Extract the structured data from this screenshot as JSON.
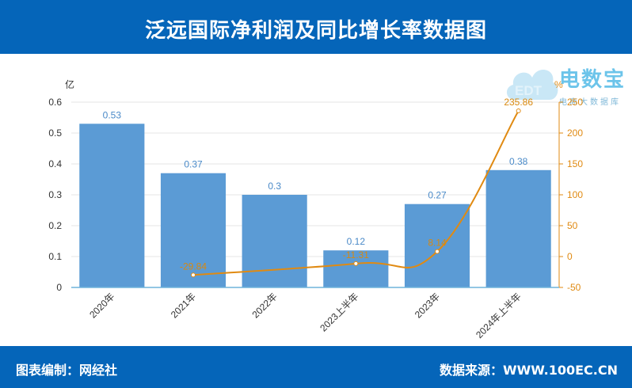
{
  "header": {
    "title": "泛远国际净利润及同比增长率数据图"
  },
  "footer": {
    "left": "图表编制：网经社",
    "right": "数据来源：WWW.100EC.CN"
  },
  "logo": {
    "brand": "电数宝",
    "sub": "电商大数据库",
    "mark": "EDT"
  },
  "colors": {
    "header_bg": "#0565b9",
    "bar": "#5b9bd5",
    "line": "#e08a12",
    "bar_label": "#4a8ac8",
    "line_label": "#d9890f"
  },
  "chart_data": {
    "type": "bar",
    "categories": [
      "2020年",
      "2021年",
      "2022年",
      "2023上半年",
      "2023年",
      "2024年上半年"
    ],
    "series": [
      {
        "values": [
          0.53,
          0.37,
          0.3,
          0.12,
          0.27,
          0.38
        ],
        "axis": "left",
        "type": "bar"
      },
      {
        "values": [
          null,
          -29.84,
          null,
          -11.31,
          8.14,
          235.86
        ],
        "axis": "right",
        "type": "line"
      }
    ],
    "left_axis": {
      "unit": "亿",
      "ylim": [
        0,
        0.6
      ],
      "ticks": [
        "0",
        "0.1",
        "0.2",
        "0.3",
        "0.4",
        "0.5",
        "0.6"
      ]
    },
    "right_axis": {
      "unit": "%",
      "ylim": [
        -50,
        250
      ],
      "ticks": [
        "-50",
        "0",
        "50",
        "100",
        "150",
        "200",
        "250"
      ]
    },
    "bar_labels": [
      "0.53",
      "0.37",
      "0.3",
      "0.12",
      "0.27",
      "0.38"
    ],
    "line_labels": [
      "",
      "-29.84",
      "",
      "-11.31",
      "8.14",
      "235.86"
    ],
    "grid": true
  }
}
